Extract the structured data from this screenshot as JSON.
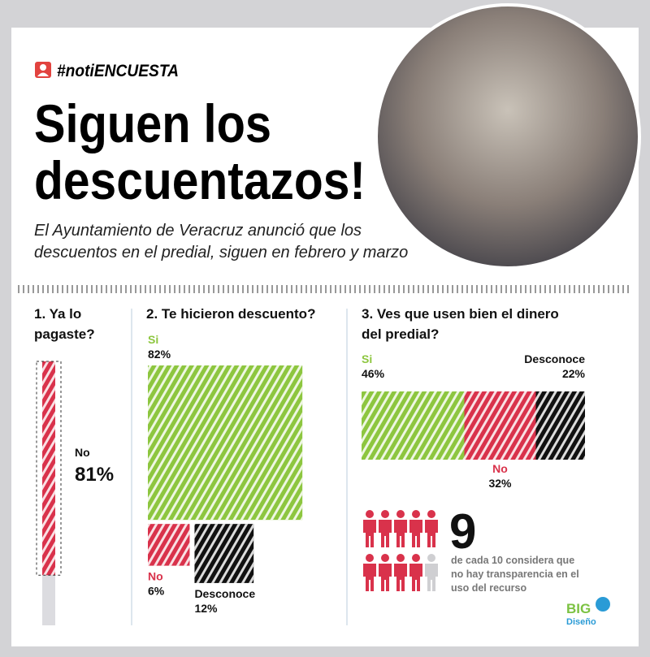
{
  "header": {
    "tag": "#notiENCUESTA",
    "title_lines": [
      "Siguen los",
      "descuentazos!"
    ],
    "subtitle_lines": [
      "El Ayuntamiento de Veracruz anunció que los",
      "descuentos en el predial, siguen en febrero y marzo"
    ]
  },
  "colors": {
    "yes": "#8dc63f",
    "no": "#d9324b",
    "unknown": "#111111"
  },
  "questions": [
    {
      "title_lines": [
        "1. Ya lo",
        "pagaste?"
      ],
      "answers": [
        {
          "label": "No",
          "value": 81,
          "value_label": "81%",
          "color": "no"
        }
      ]
    },
    {
      "title_lines": [
        "2. Te hicieron descuento?"
      ],
      "answers": [
        {
          "label": "Si",
          "value": 82,
          "value_label": "82%",
          "color": "yes"
        },
        {
          "label": "No",
          "value": 6,
          "value_label": "6%",
          "color": "no"
        },
        {
          "label": "Desconoce",
          "value": 12,
          "value_label": "12%",
          "color": "unknown"
        }
      ]
    },
    {
      "title_lines": [
        "3. Ves que usen bien el dinero",
        "del predial?"
      ],
      "answers": [
        {
          "label": "Si",
          "value": 46,
          "value_label": "46%",
          "color": "yes"
        },
        {
          "label": "No",
          "value": 32,
          "value_label": "32%",
          "color": "no"
        },
        {
          "label": "Desconoce",
          "value": 22,
          "value_label": "22%",
          "color": "unknown"
        }
      ]
    }
  ],
  "stat": {
    "count": 9,
    "total": 10,
    "text_lines": [
      "de cada 10 considera que",
      "no hay transparencia en el",
      "uso del recurso"
    ]
  },
  "brand": {
    "name": "BIG",
    "sub": "Diseño"
  }
}
